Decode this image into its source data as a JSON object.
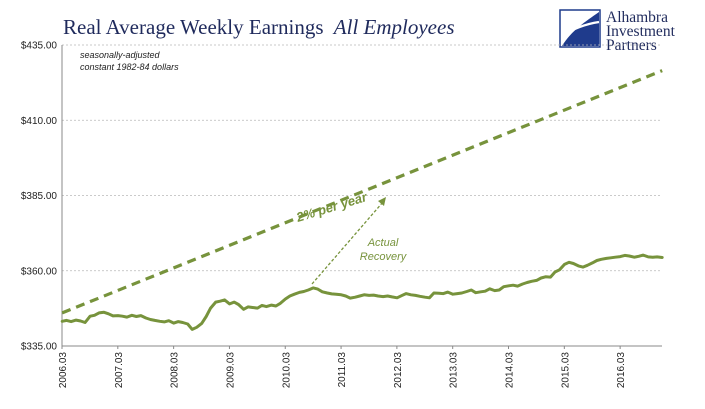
{
  "chart_data": {
    "type": "line",
    "title": "Real Average Weekly Earnings",
    "title_italic": "All Employees",
    "notes": [
      "seasonally-adjusted",
      "constant 1982-84 dollars"
    ],
    "annotation_trend": "2% per year",
    "annotation_actual_line1": "Actual",
    "annotation_actual_line2": "Recovery",
    "ylim": [
      335,
      435
    ],
    "yticks": [
      {
        "value": 335,
        "label": "$335.00"
      },
      {
        "value": 360,
        "label": "$360.00"
      },
      {
        "value": 385,
        "label": "$385.00"
      },
      {
        "value": 410,
        "label": "$410.00"
      },
      {
        "value": 435,
        "label": "$435.00"
      }
    ],
    "xlim": [
      2006.167,
      2016.917
    ],
    "xticks": [
      {
        "value": 2006.167,
        "label": "2006.03"
      },
      {
        "value": 2007.167,
        "label": "2007.03"
      },
      {
        "value": 2008.167,
        "label": "2008.03"
      },
      {
        "value": 2009.167,
        "label": "2009.03"
      },
      {
        "value": 2010.167,
        "label": "2010.03"
      },
      {
        "value": 2011.167,
        "label": "2011.03"
      },
      {
        "value": 2012.167,
        "label": "2012.03"
      },
      {
        "value": 2013.167,
        "label": "2013.03"
      },
      {
        "value": 2014.167,
        "label": "2014.03"
      },
      {
        "value": 2015.167,
        "label": "2015.03"
      },
      {
        "value": 2016.167,
        "label": "2016.03"
      }
    ],
    "grid": true,
    "series_color": "#77933c",
    "series": [
      {
        "style": "solid",
        "x": [
          2006.17,
          2006.25,
          2006.33,
          2006.42,
          2006.5,
          2006.58,
          2006.67,
          2006.75,
          2006.83,
          2006.92,
          2007.0,
          2007.08,
          2007.17,
          2007.25,
          2007.33,
          2007.42,
          2007.5,
          2007.58,
          2007.67,
          2007.75,
          2007.83,
          2007.92,
          2008.0,
          2008.08,
          2008.17,
          2008.25,
          2008.33,
          2008.42,
          2008.5,
          2008.58,
          2008.67,
          2008.75,
          2008.83,
          2008.92,
          2009.0,
          2009.08,
          2009.17,
          2009.25,
          2009.33,
          2009.42,
          2009.5,
          2009.58,
          2009.67,
          2009.75,
          2009.83,
          2009.92,
          2010.0,
          2010.08,
          2010.17,
          2010.25,
          2010.33,
          2010.42,
          2010.5,
          2010.58,
          2010.67,
          2010.75,
          2010.83,
          2010.92,
          2011.0,
          2011.08,
          2011.17,
          2011.25,
          2011.33,
          2011.42,
          2011.5,
          2011.58,
          2011.67,
          2011.75,
          2011.83,
          2011.92,
          2012.0,
          2012.08,
          2012.17,
          2012.25,
          2012.33,
          2012.42,
          2012.5,
          2012.58,
          2012.67,
          2012.75,
          2012.83,
          2012.92,
          2013.0,
          2013.08,
          2013.17,
          2013.25,
          2013.33,
          2013.42,
          2013.5,
          2013.58,
          2013.67,
          2013.75,
          2013.83,
          2013.92,
          2014.0,
          2014.08,
          2014.17,
          2014.25,
          2014.33,
          2014.42,
          2014.5,
          2014.58,
          2014.67,
          2014.75,
          2014.83,
          2014.92,
          2015.0,
          2015.08,
          2015.17,
          2015.25,
          2015.33,
          2015.42,
          2015.5,
          2015.58,
          2015.67,
          2015.75,
          2015.83,
          2015.92,
          2016.0,
          2016.08,
          2016.17,
          2016.25,
          2016.33,
          2016.42,
          2016.5,
          2016.58,
          2016.67,
          2016.75,
          2016.83,
          2016.92
        ],
        "y": [
          343.2,
          343.5,
          343.1,
          343.6,
          343.3,
          342.8,
          344.9,
          345.2,
          346.0,
          346.2,
          345.7,
          345.0,
          345.1,
          344.9,
          344.6,
          345.2,
          344.8,
          345.1,
          344.3,
          343.8,
          343.5,
          343.2,
          343.0,
          343.4,
          342.6,
          343.1,
          342.8,
          342.3,
          340.5,
          341.2,
          342.5,
          344.8,
          347.6,
          349.6,
          349.9,
          350.3,
          349.0,
          349.6,
          348.8,
          347.2,
          348.0,
          347.8,
          347.6,
          348.5,
          348.1,
          348.6,
          348.3,
          349.2,
          350.6,
          351.6,
          352.2,
          352.8,
          353.1,
          353.6,
          354.3,
          353.9,
          353.0,
          352.6,
          352.3,
          352.2,
          352.0,
          351.6,
          350.9,
          351.2,
          351.6,
          352.0,
          351.8,
          351.9,
          351.6,
          351.4,
          351.6,
          351.3,
          351.0,
          351.7,
          352.4,
          352.0,
          351.8,
          351.5,
          351.2,
          351.0,
          352.6,
          352.5,
          352.4,
          352.9,
          352.2,
          352.4,
          352.6,
          353.1,
          353.6,
          352.7,
          353.0,
          353.2,
          354.0,
          353.4,
          353.6,
          354.7,
          355.0,
          355.2,
          354.9,
          355.6,
          356.1,
          356.5,
          356.8,
          357.6,
          358.0,
          357.9,
          359.6,
          360.3,
          362.1,
          362.8,
          362.4,
          361.6,
          361.2,
          361.8,
          362.6,
          363.4,
          363.8,
          364.1,
          364.3,
          364.5,
          364.7,
          365.1,
          364.9,
          364.5,
          364.8,
          365.2,
          364.6,
          364.5,
          364.6,
          364.4
        ]
      },
      {
        "style": "dashed",
        "x": [
          2006.17,
          2016.92
        ],
        "y": [
          346.0,
          426.5
        ]
      }
    ]
  },
  "logo": {
    "line1": "Alhambra",
    "line2": "Investment",
    "line3": "Partners"
  }
}
